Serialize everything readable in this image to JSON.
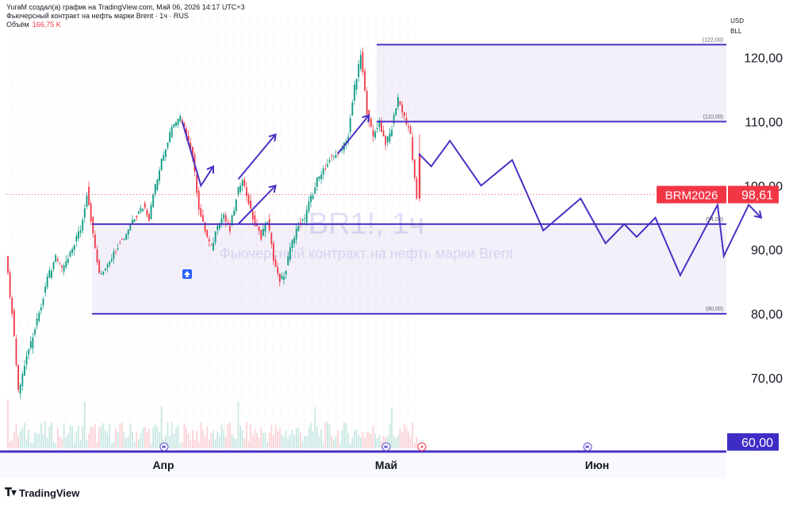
{
  "header": {
    "line1": "YuraM создал(а) график на TradingView.com, Май 06, 2026 14:17 UTC+3",
    "line2": "Фьючерсный контракт на нефть марки Brent · 1ч · RUS",
    "volume_label": "Объём",
    "volume_value": "166,75 K"
  },
  "currency": {
    "code": "USD",
    "unit": "BLL"
  },
  "watermark": {
    "ticker": "BR1!, 1ч",
    "name": "Фьючерсный контракт на нефть марки Brent"
  },
  "chart_data": {
    "type": "candlestick",
    "symbol": "BR1!",
    "interval": "1ч",
    "yticks": [
      "120,00",
      "110,00",
      "100,00",
      "90,00",
      "80,00",
      "70,00",
      "60,00"
    ],
    "ytick_values": [
      120,
      110,
      100,
      90,
      80,
      70,
      60
    ],
    "ylim": [
      58.5,
      126.5
    ],
    "xticks": [
      "Апр",
      "Май",
      "Июн"
    ],
    "last_price": {
      "label": "BRM2026",
      "value": "98,61",
      "y": 98.61
    },
    "current_level_tag": {
      "value": "60,00",
      "y": 60
    },
    "levels": [
      {
        "label": "(122,00)",
        "y": 122
      },
      {
        "label": "(110,00)",
        "y": 110
      },
      {
        "label": "(94,00)",
        "y": 94
      },
      {
        "label": "(80,00)",
        "y": 80
      }
    ],
    "price_path": [
      [
        0,
        90
      ],
      [
        1,
        80
      ],
      [
        2,
        68
      ],
      [
        3,
        72
      ],
      [
        4,
        75
      ],
      [
        5,
        79
      ],
      [
        6,
        83
      ],
      [
        7,
        86
      ],
      [
        8,
        89
      ],
      [
        9,
        87
      ],
      [
        10,
        88
      ],
      [
        11,
        91
      ],
      [
        12,
        93
      ],
      [
        13,
        99
      ],
      [
        14,
        92
      ],
      [
        15,
        86
      ],
      [
        16,
        87
      ],
      [
        17,
        89
      ],
      [
        18,
        91
      ],
      [
        19,
        92
      ],
      [
        20,
        94
      ],
      [
        21,
        96
      ],
      [
        22,
        97
      ],
      [
        23,
        95
      ],
      [
        24,
        100
      ],
      [
        25,
        104
      ],
      [
        26,
        107
      ],
      [
        27,
        110
      ],
      [
        28,
        111
      ],
      [
        29,
        108
      ],
      [
        30,
        104
      ],
      [
        31,
        96
      ],
      [
        32,
        93
      ],
      [
        33,
        90
      ],
      [
        34,
        94
      ],
      [
        35,
        95
      ],
      [
        36,
        93
      ],
      [
        37,
        98
      ],
      [
        38,
        101
      ],
      [
        39,
        97
      ],
      [
        40,
        94
      ],
      [
        41,
        92
      ],
      [
        42,
        95
      ],
      [
        43,
        89
      ],
      [
        44,
        85
      ],
      [
        45,
        87
      ],
      [
        46,
        91
      ],
      [
        47,
        94
      ],
      [
        48,
        95
      ],
      [
        49,
        98
      ],
      [
        50,
        101
      ],
      [
        51,
        103
      ],
      [
        52,
        104
      ],
      [
        53,
        105
      ],
      [
        54,
        106
      ],
      [
        55,
        108
      ],
      [
        56,
        115
      ],
      [
        57,
        121
      ],
      [
        58,
        112
      ],
      [
        59,
        108
      ],
      [
        60,
        110
      ],
      [
        61,
        107
      ],
      [
        62,
        109
      ],
      [
        63,
        114
      ],
      [
        64,
        111
      ],
      [
        65,
        108
      ],
      [
        66,
        98
      ]
    ],
    "forecast_path": [
      [
        66,
        105
      ],
      [
        68,
        103
      ],
      [
        71,
        107
      ],
      [
        76,
        100
      ],
      [
        81,
        104
      ],
      [
        86,
        93
      ],
      [
        92,
        98
      ],
      [
        96,
        91
      ],
      [
        99,
        94
      ],
      [
        101,
        92
      ],
      [
        104,
        95
      ],
      [
        108,
        86
      ],
      [
        114,
        97
      ],
      [
        115,
        89
      ],
      [
        119,
        97
      ],
      [
        121,
        95
      ]
    ],
    "arrows": [
      {
        "path": [
          [
            28,
            110
          ],
          [
            31,
            100
          ],
          [
            33,
            103
          ]
        ]
      },
      {
        "path": [
          [
            37,
            101
          ],
          [
            43,
            108
          ]
        ]
      },
      {
        "path": [
          [
            37,
            94
          ],
          [
            43,
            100
          ]
        ]
      },
      {
        "path": [
          [
            53,
            105
          ],
          [
            58,
            111
          ]
        ]
      }
    ]
  }
}
